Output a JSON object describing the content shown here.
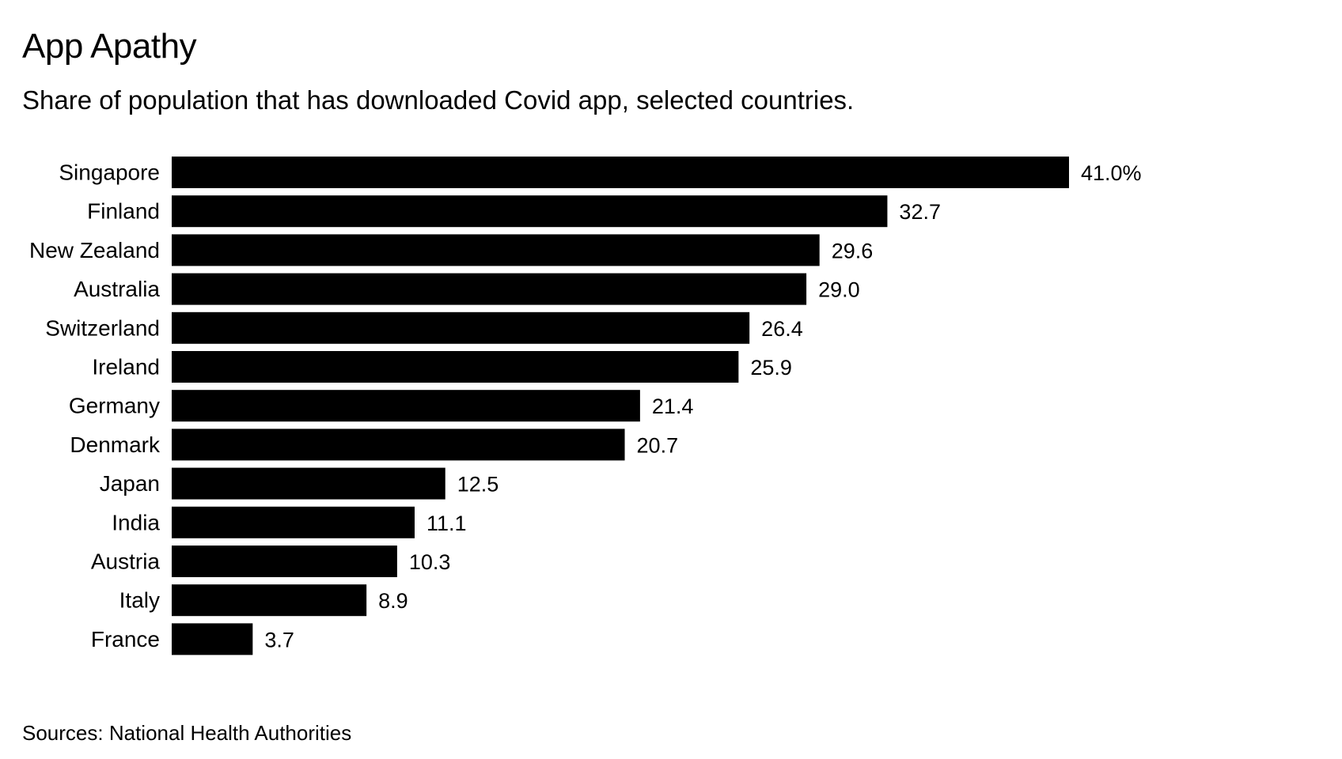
{
  "chart_data": {
    "type": "bar",
    "orientation": "horizontal",
    "title": "App Apathy",
    "subtitle": "Share of population that has downloaded Covid app, selected countries.",
    "source": "Sources: National Health Authorities",
    "categories": [
      "Singapore",
      "Finland",
      "New Zealand",
      "Australia",
      "Switzerland",
      "Ireland",
      "Germany",
      "Denmark",
      "Japan",
      "India",
      "Austria",
      "Italy",
      "France"
    ],
    "values": [
      41.0,
      32.7,
      29.6,
      29.0,
      26.4,
      25.9,
      21.4,
      20.7,
      12.5,
      11.1,
      10.3,
      8.9,
      3.7
    ],
    "value_labels": [
      "41.0%",
      "32.7",
      "29.6",
      "29.0",
      "26.4",
      "25.9",
      "21.4",
      "20.7",
      "12.5",
      "11.1",
      "10.3",
      "8.9",
      "3.7"
    ],
    "xlim": [
      0,
      41.0
    ],
    "xlabel": "",
    "ylabel": "",
    "grid": false,
    "bar_color": "#000000"
  }
}
